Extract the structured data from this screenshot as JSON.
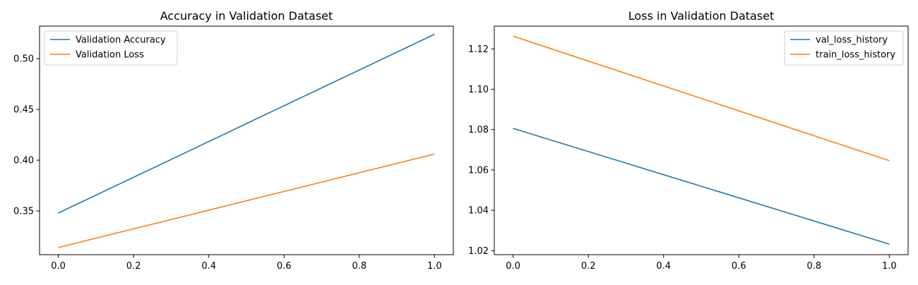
{
  "chart_data": [
    {
      "type": "line",
      "title": "Accuracy in Validation Dataset",
      "xlabel": "",
      "ylabel": "",
      "xlim": [
        -0.05,
        1.05
      ],
      "ylim": [
        0.307,
        0.532
      ],
      "x_ticks": [
        0.0,
        0.2,
        0.4,
        0.6,
        0.8,
        1.0
      ],
      "x_tick_labels": [
        "0.0",
        "0.2",
        "0.4",
        "0.6",
        "0.8",
        "1.0"
      ],
      "y_ticks": [
        0.35,
        0.4,
        0.45,
        0.5
      ],
      "y_tick_labels": [
        "0.35",
        "0.40",
        "0.45",
        "0.50"
      ],
      "legend_position": "upper-left",
      "grid": false,
      "x": [
        0.0,
        1.0
      ],
      "series": [
        {
          "name": "Validation Accuracy",
          "color": "#1f77b4",
          "values": [
            0.348,
            0.524
          ]
        },
        {
          "name": "Validation Loss",
          "color": "#ff7f0e",
          "values": [
            0.314,
            0.406
          ]
        }
      ]
    },
    {
      "type": "line",
      "title": "Loss in Validation Dataset",
      "xlabel": "",
      "ylabel": "",
      "xlim": [
        -0.05,
        1.05
      ],
      "ylim": [
        1.018,
        1.1313
      ],
      "x_ticks": [
        0.0,
        0.2,
        0.4,
        0.6,
        0.8,
        1.0
      ],
      "x_tick_labels": [
        "0.0",
        "0.2",
        "0.4",
        "0.6",
        "0.8",
        "1.0"
      ],
      "y_ticks": [
        1.02,
        1.04,
        1.06,
        1.08,
        1.1,
        1.12
      ],
      "y_tick_labels": [
        "1.02",
        "1.04",
        "1.06",
        "1.08",
        "1.10",
        "1.12"
      ],
      "legend_position": "upper-right",
      "grid": false,
      "x": [
        0.0,
        1.0
      ],
      "series": [
        {
          "name": "val_loss_history",
          "color": "#1f77b4",
          "values": [
            1.0806,
            1.0232
          ]
        },
        {
          "name": "train_loss_history",
          "color": "#ff7f0e",
          "values": [
            1.1263,
            1.0646
          ]
        }
      ]
    }
  ]
}
